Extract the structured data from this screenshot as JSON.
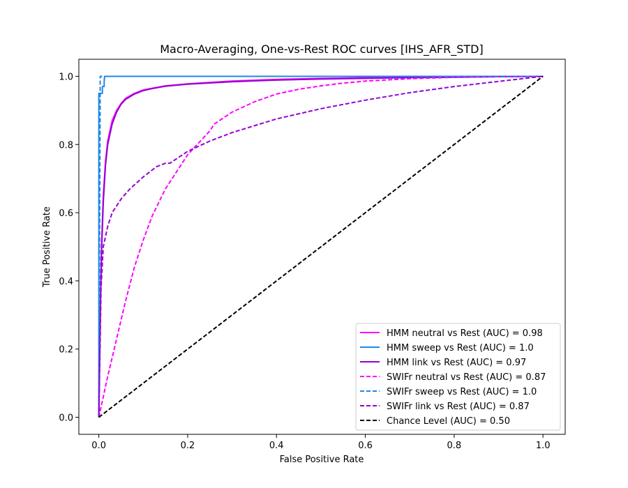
{
  "chart_data": {
    "type": "line",
    "title": "Macro-Averaging, One-vs-Rest ROC curves [IHS_AFR_STD]",
    "xlabel": "False Positive Rate",
    "ylabel": "True Positive Rate",
    "xlim": [
      -0.045,
      1.05
    ],
    "ylim": [
      -0.05,
      1.05
    ],
    "xticks": [
      0.0,
      0.2,
      0.4,
      0.6,
      0.8,
      1.0
    ],
    "yticks": [
      0.0,
      0.2,
      0.4,
      0.6,
      0.8,
      1.0
    ],
    "xtick_labels": [
      "0.0",
      "0.2",
      "0.4",
      "0.6",
      "0.8",
      "1.0"
    ],
    "ytick_labels": [
      "0.0",
      "0.2",
      "0.4",
      "0.6",
      "0.8",
      "1.0"
    ],
    "grid": false,
    "legend_position": "bottom-right",
    "series": [
      {
        "name": "HMM neutral vs Rest (AUC) = 0.98",
        "color": "#ff00ff",
        "dash": "solid",
        "x": [
          0,
          0.003,
          0.006,
          0.01,
          0.015,
          0.02,
          0.03,
          0.04,
          0.05,
          0.06,
          0.08,
          0.1,
          0.12,
          0.15,
          0.2,
          0.3,
          0.4,
          0.5,
          0.6,
          0.7,
          0.8,
          0.9,
          1.0
        ],
        "y": [
          0,
          0.3,
          0.5,
          0.65,
          0.75,
          0.81,
          0.87,
          0.9,
          0.92,
          0.935,
          0.95,
          0.96,
          0.965,
          0.972,
          0.978,
          0.986,
          0.991,
          0.994,
          0.996,
          0.997,
          0.998,
          0.999,
          1.0
        ]
      },
      {
        "name": "HMM sweep vs Rest (AUC) = 1.0",
        "color": "#1e88e5",
        "dash": "solid",
        "x": [
          0,
          0.0,
          0.0,
          0.008,
          0.008,
          0.012,
          0.012,
          0.013,
          1.0
        ],
        "y": [
          0,
          0.6,
          0.95,
          0.95,
          0.97,
          0.97,
          0.985,
          1.0,
          1.0
        ]
      },
      {
        "name": "HMM link vs Rest (AUC) = 0.97",
        "color": "#9400d3",
        "dash": "solid",
        "x": [
          0,
          0.003,
          0.006,
          0.01,
          0.015,
          0.02,
          0.03,
          0.04,
          0.05,
          0.06,
          0.08,
          0.1,
          0.12,
          0.15,
          0.2,
          0.3,
          0.4,
          0.5,
          0.6,
          0.7,
          0.8,
          0.9,
          1.0
        ],
        "y": [
          0,
          0.28,
          0.48,
          0.63,
          0.74,
          0.8,
          0.86,
          0.895,
          0.918,
          0.932,
          0.948,
          0.958,
          0.964,
          0.971,
          0.977,
          0.984,
          0.989,
          0.992,
          0.994,
          0.996,
          0.997,
          0.999,
          1.0
        ]
      },
      {
        "name": "SWIFr neutral vs Rest (AUC) = 0.87",
        "color": "#ff00ff",
        "dash": "dashed",
        "x": [
          0,
          0.01,
          0.02,
          0.04,
          0.06,
          0.08,
          0.1,
          0.12,
          0.15,
          0.2,
          0.25,
          0.26,
          0.3,
          0.35,
          0.4,
          0.45,
          0.5,
          0.55,
          0.6,
          0.7,
          0.8,
          0.9,
          1.0
        ],
        "y": [
          0,
          0.06,
          0.12,
          0.23,
          0.34,
          0.44,
          0.52,
          0.59,
          0.67,
          0.77,
          0.84,
          0.86,
          0.895,
          0.925,
          0.948,
          0.962,
          0.972,
          0.98,
          0.986,
          0.993,
          0.997,
          0.999,
          1.0
        ]
      },
      {
        "name": "SWIFr sweep vs Rest (AUC) = 1.0",
        "color": "#1e88e5",
        "dash": "dashed",
        "x": [
          0,
          0.002,
          0.003,
          0.003,
          1.0
        ],
        "y": [
          0,
          0.6,
          0.9,
          1.0,
          1.0
        ]
      },
      {
        "name": "SWIFr link vs Rest (AUC) = 0.87",
        "color": "#9400d3",
        "dash": "dashed",
        "x": [
          0,
          0.005,
          0.01,
          0.02,
          0.03,
          0.05,
          0.07,
          0.1,
          0.13,
          0.15,
          0.16,
          0.2,
          0.25,
          0.3,
          0.35,
          0.4,
          0.5,
          0.6,
          0.7,
          0.8,
          0.9,
          1.0
        ],
        "y": [
          0,
          0.38,
          0.5,
          0.56,
          0.6,
          0.64,
          0.67,
          0.705,
          0.735,
          0.745,
          0.745,
          0.78,
          0.81,
          0.835,
          0.855,
          0.875,
          0.905,
          0.93,
          0.952,
          0.97,
          0.985,
          1.0
        ]
      },
      {
        "name": "Chance Level (AUC) = 0.50",
        "color": "#000000",
        "dash": "dashed",
        "x": [
          0,
          1.0
        ],
        "y": [
          0,
          1.0
        ]
      }
    ]
  }
}
